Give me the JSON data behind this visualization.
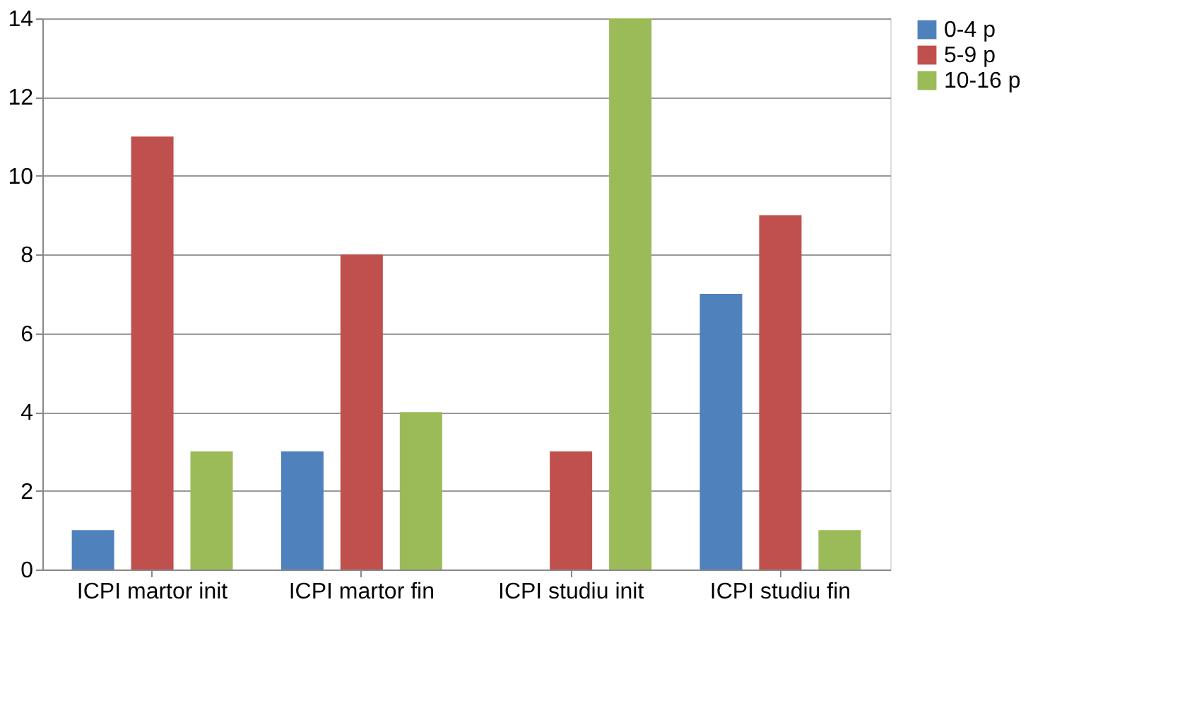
{
  "chart_data": {
    "type": "bar",
    "categories": [
      "ICPI martor init",
      "ICPI martor fin",
      "ICPI studiu init",
      "ICPI studiu fin"
    ],
    "series": [
      {
        "name": "0-4 p",
        "color": "#4f81bd",
        "values": [
          1,
          3,
          0,
          7
        ]
      },
      {
        "name": "5-9 p",
        "color": "#c0504d",
        "values": [
          11,
          8,
          3,
          9
        ]
      },
      {
        "name": "10-16 p",
        "color": "#9bbb59",
        "values": [
          3,
          4,
          14,
          1
        ]
      }
    ],
    "ylim": [
      0,
      14
    ],
    "yticks": [
      0,
      2,
      4,
      6,
      8,
      10,
      12,
      14
    ],
    "grid": "y",
    "legend": "right"
  }
}
